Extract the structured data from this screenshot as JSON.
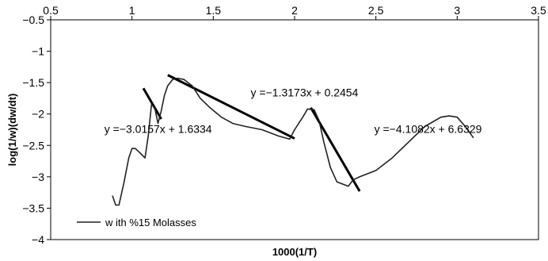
{
  "chart_data": {
    "type": "line",
    "title": "",
    "xlabel": "1000(1/T)",
    "ylabel": "log(1/w)(dw/dt)",
    "xlim": [
      0.5,
      3.5
    ],
    "ylim": [
      -4,
      -0.5
    ],
    "x_axis_position": "top",
    "x_ticks": [
      0.5,
      1,
      1.5,
      2,
      2.5,
      3,
      3.5
    ],
    "x_tick_labels": [
      "0.5",
      "1",
      "1.5",
      "2",
      "2.5",
      "3",
      "3.5"
    ],
    "y_ticks": [
      -0.5,
      -1,
      -1.5,
      -2,
      -2.5,
      -3,
      -3.5,
      -4
    ],
    "y_tick_labels": [
      "−0.5",
      "−1",
      "−1.5",
      "−2",
      "−2.5",
      "−3",
      "−3.5",
      "−4"
    ],
    "grid": false,
    "legend": {
      "position": "bottom-left",
      "entries": [
        "w ith %15 Molasses"
      ]
    },
    "series": [
      {
        "name": "w ith %15 Molasses",
        "color": "#222222",
        "x": [
          0.88,
          0.9,
          0.92,
          0.95,
          0.98,
          1.0,
          1.02,
          1.05,
          1.08,
          1.1,
          1.12,
          1.14,
          1.16,
          1.18,
          1.2,
          1.22,
          1.25,
          1.28,
          1.32,
          1.37,
          1.42,
          1.48,
          1.55,
          1.62,
          1.7,
          1.8,
          1.9,
          1.97,
          2.0,
          2.05,
          2.08,
          2.12,
          2.15,
          2.18,
          2.22,
          2.26,
          2.3,
          2.33,
          2.36,
          2.4,
          2.5,
          2.6,
          2.7,
          2.8,
          2.9,
          2.95,
          3.0,
          3.05,
          3.1
        ],
        "y": [
          -3.3,
          -3.45,
          -3.45,
          -3.1,
          -2.7,
          -2.55,
          -2.55,
          -2.62,
          -2.7,
          -2.35,
          -1.85,
          -1.9,
          -2.15,
          -1.95,
          -1.7,
          -1.55,
          -1.45,
          -1.43,
          -1.45,
          -1.55,
          -1.75,
          -1.9,
          -2.05,
          -2.15,
          -2.2,
          -2.25,
          -2.35,
          -2.4,
          -2.25,
          -2.05,
          -1.92,
          -1.93,
          -2.1,
          -2.45,
          -2.85,
          -3.08,
          -3.12,
          -3.15,
          -3.05,
          -3.0,
          -2.9,
          -2.7,
          -2.45,
          -2.2,
          -2.05,
          -2.03,
          -2.05,
          -2.2,
          -2.38
        ]
      }
    ],
    "trendlines": [
      {
        "x": [
          1.07,
          1.18
        ],
        "y": [
          -1.59,
          -2.08
        ]
      },
      {
        "x": [
          1.22,
          2.0
        ],
        "y": [
          -1.38,
          -2.39
        ]
      },
      {
        "x": [
          2.1,
          2.4
        ],
        "y": [
          -1.9,
          -3.23
        ]
      }
    ],
    "annotations": [
      {
        "text": "y =−1.3173x + 0.2454",
        "x": 1.73,
        "y": -1.72
      },
      {
        "text": "y =−3.0157x + 1.6334",
        "x": 0.83,
        "y": -2.3
      },
      {
        "text": "y =−4.1082x + 6.6329",
        "x": 2.49,
        "y": -2.3
      }
    ]
  }
}
